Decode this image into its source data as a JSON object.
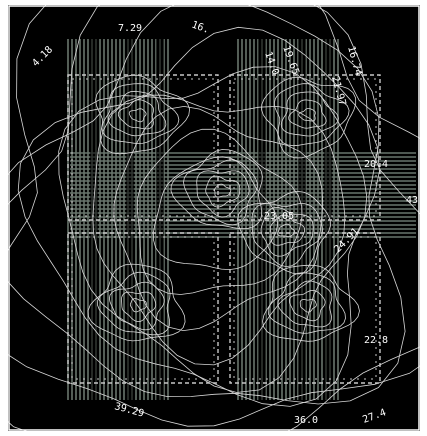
{
  "map": {
    "background_color": "#000000",
    "frame_color": "#ffffff",
    "contour_color": "#d8d8d8",
    "grid_color": "#7c8a80",
    "block_outline_color": "#c8c8c8",
    "view": "top-down contour map of a square site with four square blocks separated by a cross-shaped gap",
    "contour_labels": [
      {
        "text": "4.18",
        "rotate": -45
      },
      {
        "text": "7.29",
        "rotate": 0
      },
      {
        "text": "16.",
        "rotate": 20
      },
      {
        "text": "19.65",
        "rotate": 70
      },
      {
        "text": "14.0",
        "rotate": 70
      },
      {
        "text": "16.74",
        "rotate": 75
      },
      {
        "text": "21.97",
        "rotate": 75
      },
      {
        "text": "20.4",
        "rotate": 0
      },
      {
        "text": "22.8",
        "rotate": 0
      },
      {
        "text": "24.91",
        "rotate": -45
      },
      {
        "text": "23.05",
        "rotate": 0
      },
      {
        "text": "39.29",
        "rotate": 15
      },
      {
        "text": "36.0",
        "rotate": 0
      },
      {
        "text": "27.4",
        "rotate": -20
      },
      {
        "text": "43",
        "rotate": 0
      }
    ]
  }
}
